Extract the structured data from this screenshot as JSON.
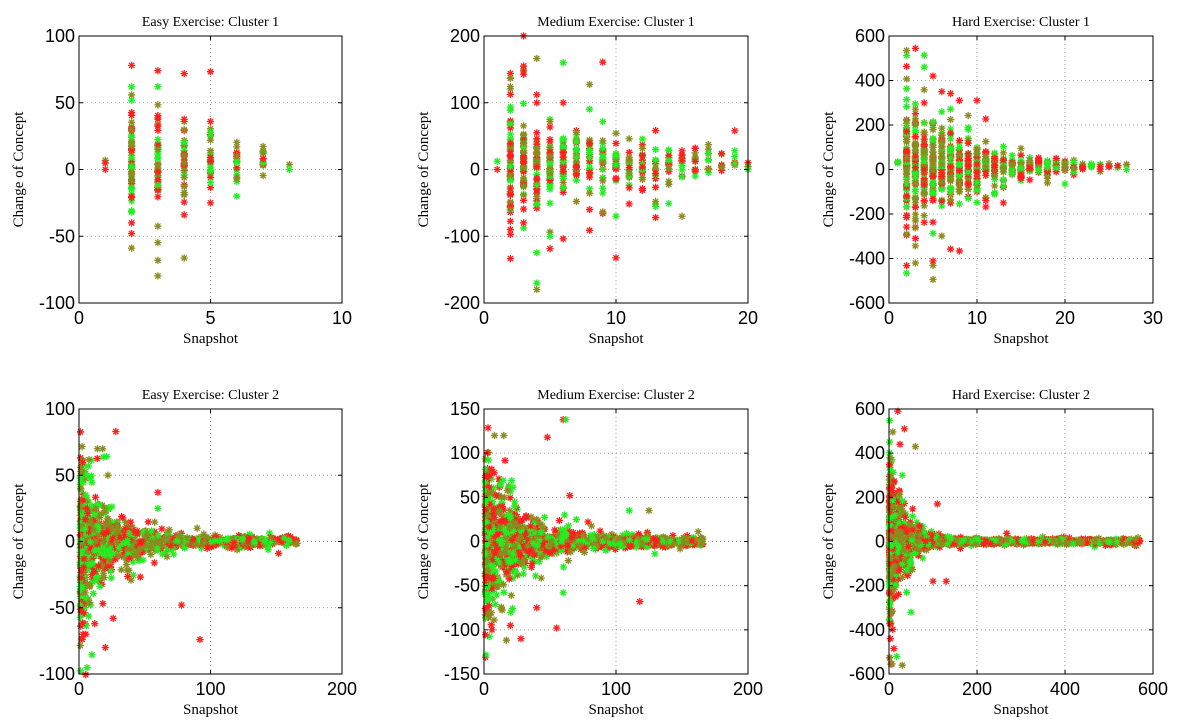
{
  "chart_data": [
    {
      "type": "scatter",
      "title": "Easy Exercise: Cluster 1",
      "xlabel": "Snapshot",
      "ylabel": "Change of Concept",
      "xlim": [
        0,
        10
      ],
      "ylim": [
        -100,
        100
      ],
      "xticks": [
        0,
        5,
        10
      ],
      "yticks": [
        -100,
        -50,
        0,
        50,
        100
      ],
      "grid": true,
      "style": {
        "kind": "discrete",
        "xs": [
          1,
          2,
          3,
          4,
          5,
          6,
          7,
          8
        ],
        "n": [
          2,
          60,
          45,
          35,
          25,
          18,
          12,
          1
        ],
        "spread": [
          0,
          45,
          35,
          25,
          18,
          15,
          10,
          0
        ],
        "tail": [
          0,
          2.5,
          2,
          1.7,
          1.3,
          1,
          0.6,
          0
        ],
        "center": 12
      },
      "series": [
        {
          "name": "",
          "color": "#ff2020",
          "points": [
            [
              1,
              0
            ],
            [
              2,
              78
            ],
            [
              2,
              -48
            ],
            [
              2,
              -40
            ],
            [
              3,
              74
            ],
            [
              4,
              -34
            ],
            [
              5,
              36
            ],
            [
              5,
              -25
            ],
            [
              7,
              8
            ]
          ]
        },
        {
          "name": "",
          "color": "#20ee20",
          "points": [
            [
              2,
              62
            ],
            [
              3,
              62
            ],
            [
              5,
              28
            ],
            [
              6,
              -20
            ],
            [
              8,
              0
            ]
          ]
        },
        {
          "name": "",
          "color": "#8a8a20",
          "points": [
            [
              2,
              30
            ],
            [
              3,
              15
            ],
            [
              4,
              5
            ]
          ]
        }
      ]
    },
    {
      "type": "scatter",
      "title": "Medium Exercise: Cluster 1",
      "xlabel": "Snapshot",
      "ylabel": "Change of Concept",
      "xlim": [
        0,
        20
      ],
      "ylim": [
        -200,
        200
      ],
      "xticks": [
        0,
        10,
        20
      ],
      "yticks": [
        -200,
        -100,
        0,
        100,
        200
      ],
      "grid": true,
      "style": {
        "kind": "discrete",
        "xs": [
          1,
          2,
          3,
          4,
          5,
          6,
          7,
          8,
          9,
          10,
          11,
          12,
          13,
          14,
          15,
          16,
          17,
          18,
          19,
          20
        ],
        "n": [
          1,
          70,
          60,
          50,
          45,
          40,
          35,
          30,
          28,
          25,
          22,
          20,
          18,
          16,
          14,
          12,
          10,
          8,
          6,
          3
        ],
        "spread": [
          0,
          90,
          75,
          65,
          55,
          50,
          45,
          42,
          38,
          35,
          32,
          30,
          28,
          27,
          26,
          25,
          24,
          22,
          20,
          10
        ],
        "tail": [
          0,
          1.5,
          1.3,
          1.2,
          1.1,
          1,
          1,
          0.9,
          0.8,
          0.7,
          0.6,
          0.5,
          0.4,
          0.3,
          0.2,
          0.1,
          0,
          0,
          0,
          0
        ],
        "center": 20
      },
      "series": [
        {
          "name": "",
          "color": "#ff2020",
          "points": [
            [
              1,
              0
            ],
            [
              2,
              -90
            ],
            [
              3,
              155
            ],
            [
              4,
              112
            ],
            [
              6,
              100
            ],
            [
              8,
              -60
            ],
            [
              3,
              -80
            ],
            [
              19,
              58
            ]
          ]
        },
        {
          "name": "",
          "color": "#20ee20",
          "points": [
            [
              6,
              160
            ],
            [
              5,
              -100
            ],
            [
              10,
              -70
            ],
            [
              20,
              0
            ]
          ]
        },
        {
          "name": "",
          "color": "#8a8a20",
          "points": [
            [
              3,
              40
            ],
            [
              5,
              20
            ]
          ]
        }
      ]
    },
    {
      "type": "scatter",
      "title": "Hard Exercise: Cluster 1",
      "xlabel": "Snapshot",
      "ylabel": "Change of Concept",
      "xlim": [
        0,
        30
      ],
      "ylim": [
        -600,
        600
      ],
      "xticks": [
        0,
        10,
        20,
        30
      ],
      "yticks": [
        -600,
        -400,
        -200,
        0,
        200,
        400,
        600
      ],
      "grid": true,
      "style": {
        "kind": "discrete",
        "xs": [
          1,
          2,
          3,
          4,
          5,
          6,
          7,
          8,
          9,
          10,
          11,
          12,
          13,
          14,
          15,
          16,
          17,
          18,
          19,
          20,
          21,
          22,
          23,
          24,
          25,
          26,
          27
        ],
        "n": [
          3,
          80,
          80,
          70,
          65,
          60,
          55,
          50,
          45,
          40,
          35,
          30,
          28,
          25,
          22,
          20,
          18,
          16,
          14,
          12,
          10,
          8,
          6,
          5,
          4,
          3,
          2
        ],
        "spread": [
          30,
          240,
          220,
          200,
          180,
          170,
          150,
          130,
          120,
          100,
          85,
          75,
          65,
          55,
          50,
          45,
          40,
          35,
          32,
          30,
          26,
          22,
          20,
          15,
          12,
          10,
          5
        ],
        "tail": [
          0,
          0.8,
          0.8,
          0.7,
          0.6,
          0.6,
          0.5,
          0.4,
          0.35,
          0.3,
          0.25,
          0.2,
          0.15,
          0.1,
          0.1,
          0.05,
          0,
          0,
          0,
          0,
          0,
          0,
          0,
          0,
          0,
          0,
          0
        ],
        "center": 30
      },
      "series": [
        {
          "name": "",
          "color": "#ff2020",
          "points": [
            [
              2,
              -120
            ],
            [
              4,
              -140
            ],
            [
              6,
              350
            ],
            [
              8,
              310
            ],
            [
              10,
              310
            ],
            [
              11,
              -140
            ],
            [
              13,
              -150
            ],
            [
              5,
              420
            ]
          ]
        },
        {
          "name": "",
          "color": "#20ee20",
          "points": [
            [
              4,
              460
            ],
            [
              3,
              -100
            ],
            [
              27,
              0
            ]
          ]
        },
        {
          "name": "",
          "color": "#8a8a20",
          "points": [
            [
              5,
              100
            ],
            [
              7,
              -30
            ]
          ]
        }
      ]
    },
    {
      "type": "scatter",
      "title": "Easy Exercise: Cluster 2",
      "xlabel": "Snapshot",
      "ylabel": "Change of Concept",
      "xlim": [
        0,
        200
      ],
      "ylim": [
        -100,
        100
      ],
      "xticks": [
        0,
        100,
        200
      ],
      "yticks": [
        -100,
        -50,
        0,
        50,
        100
      ],
      "grid": true,
      "style": {
        "kind": "cont",
        "xmax": 165,
        "count": 1100,
        "spread0": 70,
        "decay": 22,
        "floor": 4,
        "center": 0
      },
      "series": [
        {
          "name": "",
          "color": "#ff2020",
          "points": [
            [
              28,
              83
            ],
            [
              20,
              -80
            ],
            [
              26,
              -58
            ],
            [
              78,
              -48
            ],
            [
              92,
              -74
            ],
            [
              60,
              37
            ],
            [
              3,
              -70
            ],
            [
              12,
              -62
            ]
          ]
        },
        {
          "name": "",
          "color": "#20ee20",
          "points": [
            [
              60,
              25
            ],
            [
              55,
              8
            ],
            [
              160,
              0
            ],
            [
              158,
              -3
            ]
          ]
        },
        {
          "name": "",
          "color": "#8a8a20",
          "points": [
            [
              14,
              70
            ],
            [
              18,
              70
            ],
            [
              22,
              50
            ]
          ]
        }
      ]
    },
    {
      "type": "scatter",
      "title": "Medium Exercise: Cluster 2",
      "xlabel": "Snapshot",
      "ylabel": "Change of Concept",
      "xlim": [
        0,
        200
      ],
      "ylim": [
        -150,
        150
      ],
      "xticks": [
        0,
        100,
        200
      ],
      "yticks": [
        -150,
        -100,
        -50,
        0,
        50,
        100,
        150
      ],
      "grid": true,
      "style": {
        "kind": "cont",
        "xmax": 165,
        "count": 1300,
        "spread0": 100,
        "decay": 25,
        "floor": 6,
        "center": 0
      },
      "series": [
        {
          "name": "",
          "color": "#ff2020",
          "points": [
            [
              60,
              138
            ],
            [
              55,
              -98
            ],
            [
              28,
              -110
            ],
            [
              118,
              -68
            ],
            [
              65,
              52
            ],
            [
              48,
              118
            ],
            [
              20,
              -95
            ],
            [
              40,
              -75
            ]
          ]
        },
        {
          "name": "",
          "color": "#20ee20",
          "points": [
            [
              62,
              138
            ],
            [
              60,
              -58
            ],
            [
              70,
              25
            ],
            [
              110,
              35
            ]
          ]
        },
        {
          "name": "",
          "color": "#8a8a20",
          "points": [
            [
              8,
              120
            ],
            [
              15,
              120
            ],
            [
              125,
              35
            ]
          ]
        }
      ]
    },
    {
      "type": "scatter",
      "title": "Hard Exercise: Cluster 2",
      "xlabel": "Snapshot",
      "ylabel": "Change of Concept",
      "xlim": [
        0,
        600
      ],
      "ylim": [
        -600,
        600
      ],
      "xticks": [
        0,
        200,
        400,
        600
      ],
      "yticks": [
        -600,
        -400,
        -200,
        0,
        200,
        400,
        600
      ],
      "grid": true,
      "style": {
        "kind": "cont",
        "xmax": 570,
        "count": 1700,
        "spread0": 420,
        "decay": 30,
        "floor": 12,
        "center": 0
      },
      "series": [
        {
          "name": "",
          "color": "#ff2020",
          "points": [
            [
              20,
              590
            ],
            [
              35,
              510
            ],
            [
              25,
              440
            ],
            [
              100,
              -180
            ],
            [
              130,
              -180
            ],
            [
              110,
              170
            ],
            [
              15,
              -250
            ]
          ]
        },
        {
          "name": "",
          "color": "#20ee20",
          "points": [
            [
              50,
              -320
            ],
            [
              40,
              -230
            ],
            [
              30,
              300
            ]
          ]
        },
        {
          "name": "",
          "color": "#8a8a20",
          "points": [
            [
              30,
              -560
            ],
            [
              60,
              430
            ],
            [
              560,
              10
            ]
          ]
        }
      ]
    }
  ]
}
